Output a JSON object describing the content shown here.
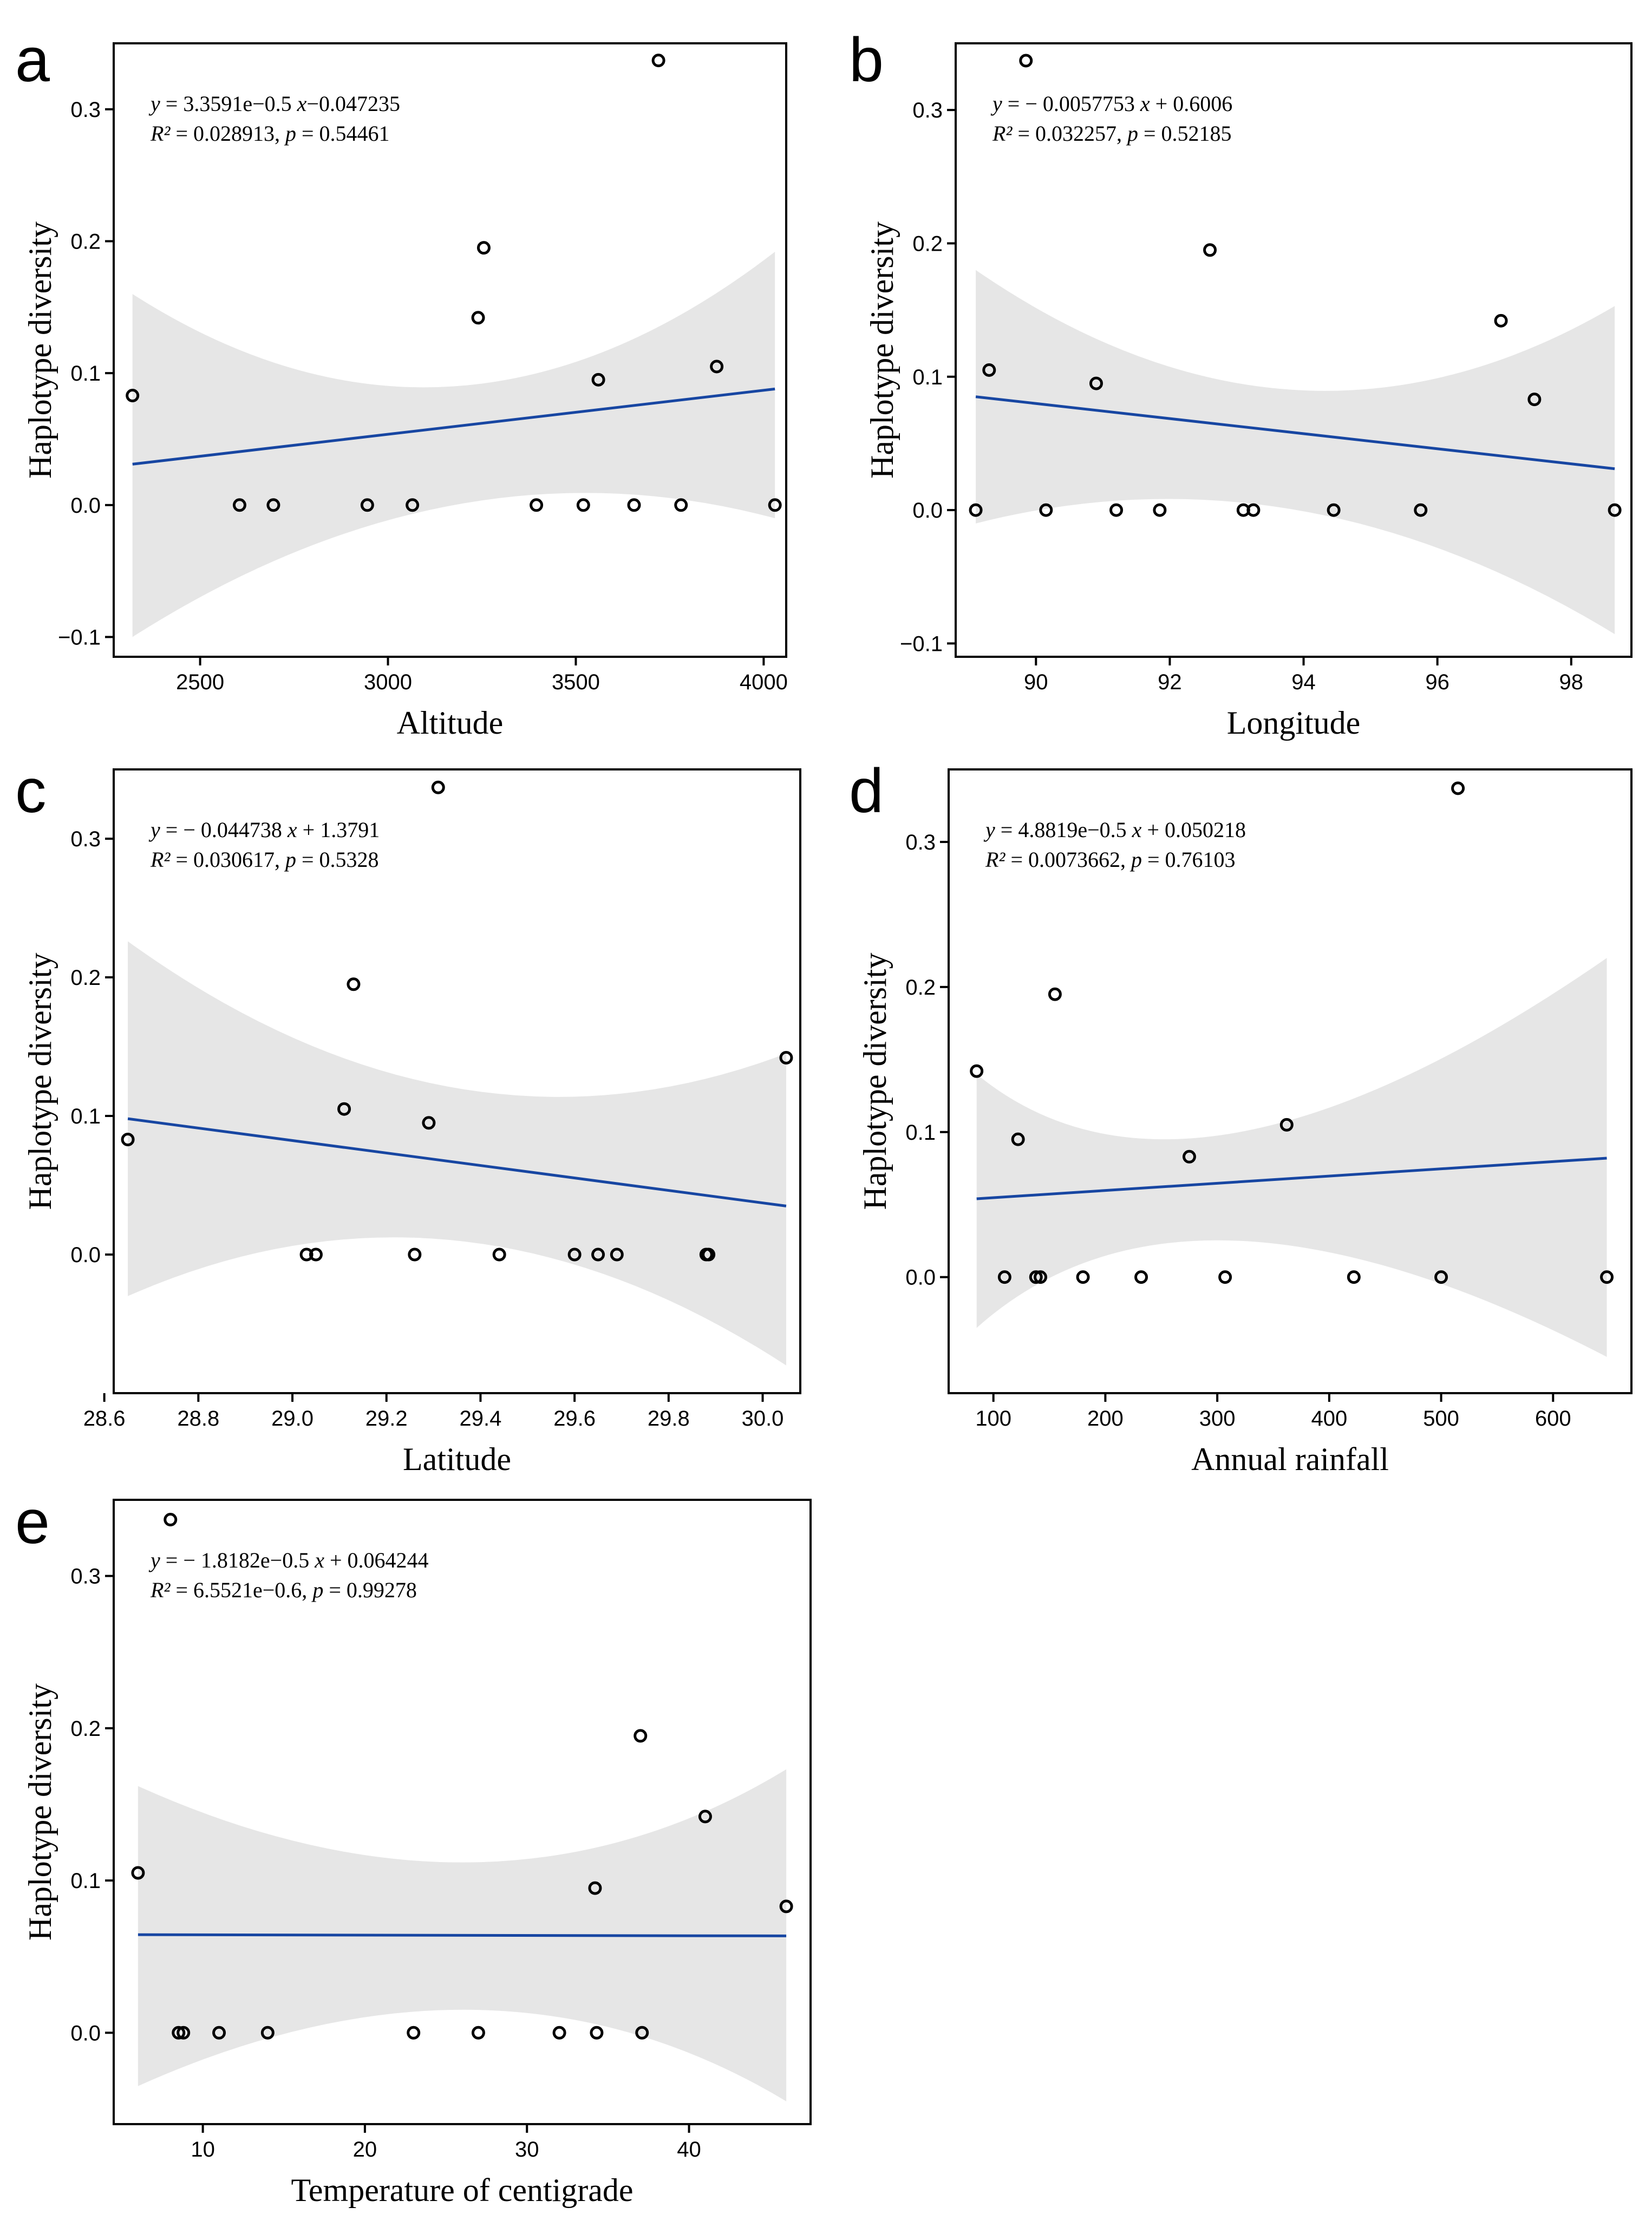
{
  "figure": {
    "ylabel": "Haplotype diversity",
    "colors": {
      "regression_line": "#1746a2",
      "confidence_band": "#e6e6e6",
      "points": "#000000",
      "axes": "#000000"
    }
  },
  "chart_data": [
    {
      "id": "a",
      "type": "scatter",
      "panel_label": "a",
      "title": "",
      "xlabel": "Altitude",
      "ylabel": "Haplotype diversity",
      "xlim": [
        2270,
        4060
      ],
      "ylim": [
        -0.115,
        0.35
      ],
      "xticks": [
        2500,
        3000,
        3500,
        4000
      ],
      "xtick_labels": [
        "2500",
        "3000",
        "3500",
        "4000"
      ],
      "yticks": [
        -0.1,
        0.0,
        0.1,
        0.2,
        0.3
      ],
      "ytick_labels": [
        "−0.1",
        "0.0",
        "0.1",
        "0.2",
        "0.3"
      ],
      "equation": {
        "line1": {
          "lhs": "y",
          "rhs": " = 3.3591e−0.5 ",
          "var": "x",
          "tail": "−0.047235"
        },
        "line2": {
          "r2": "R²",
          "r2_val": " = 0.028913, ",
          "p": "p",
          "p_val": " = 0.54461"
        }
      },
      "x": [
        2320,
        2605,
        2695,
        2945,
        3065,
        3240,
        3255,
        3395,
        3520,
        3560,
        3655,
        3720,
        3780,
        3875,
        4030
      ],
      "y": [
        0.083,
        0.0,
        0.0,
        0.0,
        0.0,
        0.142,
        0.195,
        0.0,
        0.0,
        0.095,
        0.0,
        0.337,
        0.0,
        0.105,
        0.0
      ],
      "fit": {
        "x": [
          2320,
          4030
        ],
        "y": [
          0.031,
          0.088
        ]
      },
      "band": {
        "x": [
          2320,
          3175,
          4030
        ],
        "upper": [
          0.16,
          0.09,
          0.192
        ],
        "lower": [
          -0.1,
          0.0,
          -0.01
        ]
      }
    },
    {
      "id": "b",
      "type": "scatter",
      "panel_label": "b",
      "title": "",
      "xlabel": "Longitude",
      "ylabel": "Haplotype diversity",
      "xlim": [
        88.8,
        98.9
      ],
      "ylim": [
        -0.11,
        0.35
      ],
      "xticks": [
        90,
        92,
        94,
        96,
        98
      ],
      "xtick_labels": [
        "90",
        "92",
        "94",
        "96",
        "98"
      ],
      "yticks": [
        -0.1,
        0.0,
        0.1,
        0.2,
        0.3
      ],
      "ytick_labels": [
        "−0.1",
        "0.0",
        "0.1",
        "0.2",
        "0.3"
      ],
      "equation": {
        "line1": {
          "lhs": "y",
          "rhs": " = − 0.0057753 ",
          "var": "x",
          "tail": " + 0.6006"
        },
        "line2": {
          "r2": "R²",
          "r2_val": " = 0.032257, ",
          "p": "p",
          "p_val": " = 0.52185"
        }
      },
      "x": [
        89.1,
        89.3,
        89.85,
        90.15,
        90.9,
        91.2,
        91.85,
        92.6,
        93.1,
        93.25,
        94.45,
        95.75,
        96.95,
        97.45,
        98.65
      ],
      "y": [
        0.0,
        0.105,
        0.337,
        0.0,
        0.095,
        0.0,
        0.0,
        0.195,
        0.0,
        0.0,
        0.0,
        0.0,
        0.142,
        0.083,
        0.0
      ],
      "fit": {
        "x": [
          89.1,
          98.65
        ],
        "y": [
          0.085,
          0.031
        ]
      },
      "band": {
        "x": [
          89.1,
          93.9,
          98.65
        ],
        "upper": [
          0.18,
          0.09,
          0.153
        ],
        "lower": [
          -0.01,
          0.0,
          -0.093
        ]
      }
    },
    {
      "id": "c",
      "type": "scatter",
      "panel_label": "c",
      "title": "",
      "xlabel": "Latitude",
      "ylabel": "Haplotype diversity",
      "xlim": [
        28.62,
        30.08
      ],
      "ylim": [
        -0.1,
        0.35
      ],
      "xticks": [
        28.6,
        28.8,
        29.0,
        29.2,
        29.4,
        29.6,
        29.8,
        30.0
      ],
      "xtick_labels": [
        "28.6",
        "28.8",
        "29.0",
        "29.2",
        "29.4",
        "29.6",
        "29.8",
        "30.0"
      ],
      "yticks": [
        0.0,
        0.1,
        0.2,
        0.3
      ],
      "ytick_labels": [
        "0.0",
        "0.1",
        "0.2",
        "0.3"
      ],
      "equation": {
        "line1": {
          "lhs": "y",
          "rhs": " = − 0.044738 ",
          "var": "x",
          "tail": " + 1.3791"
        },
        "line2": {
          "r2": "R²",
          "r2_val": " =  0.030617, ",
          "p": "p",
          "p_val": " = 0.5328"
        }
      },
      "x": [
        28.65,
        29.03,
        29.05,
        29.11,
        29.13,
        29.26,
        29.29,
        29.31,
        29.44,
        29.6,
        29.65,
        29.69,
        29.88,
        29.885,
        30.05
      ],
      "y": [
        0.083,
        0.0,
        0.0,
        0.105,
        0.195,
        0.0,
        0.095,
        0.337,
        0.0,
        0.0,
        0.0,
        0.0,
        0.0,
        0.0,
        0.142
      ],
      "fit": {
        "x": [
          28.65,
          30.05
        ],
        "y": [
          0.098,
          0.035
        ]
      },
      "band": {
        "x": [
          28.65,
          29.35,
          30.05
        ],
        "upper": [
          0.226,
          0.12,
          0.145
        ],
        "lower": [
          -0.03,
          0.01,
          -0.08
        ]
      }
    },
    {
      "id": "d",
      "type": "scatter",
      "panel_label": "d",
      "title": "",
      "xlabel": "Annual rainfall",
      "ylabel": "Haplotype diversity",
      "xlim": [
        60,
        670
      ],
      "ylim": [
        -0.08,
        0.35
      ],
      "xticks": [
        100,
        200,
        300,
        400,
        500,
        600
      ],
      "xtick_labels": [
        "100",
        "200",
        "300",
        "400",
        "500",
        "600"
      ],
      "yticks": [
        0.0,
        0.1,
        0.2,
        0.3
      ],
      "ytick_labels": [
        "0.0",
        "0.1",
        "0.2",
        "0.3"
      ],
      "equation": {
        "line1": {
          "lhs": "y",
          "rhs": " = 4.8819e−0.5 ",
          "var": "x",
          "tail": " + 0.050218"
        },
        "line2": {
          "r2": "R²",
          "r2_val": " = 0.0073662, ",
          "p": "p",
          "p_val": " = 0.76103"
        }
      },
      "x": [
        85,
        110,
        122,
        138,
        142,
        155,
        180,
        232,
        275,
        307,
        362,
        422,
        500,
        515,
        648
      ],
      "y": [
        0.142,
        0.0,
        0.095,
        0.0,
        0.0,
        0.195,
        0.0,
        0.0,
        0.083,
        0.0,
        0.105,
        0.0,
        0.0,
        0.337,
        0.0
      ],
      "fit": {
        "x": [
          85,
          648
        ],
        "y": [
          0.054,
          0.082
        ]
      },
      "band": {
        "x": [
          85,
          320,
          648
        ],
        "upper": [
          0.14,
          0.1,
          0.22
        ],
        "lower": [
          -0.035,
          0.025,
          -0.055
        ]
      }
    },
    {
      "id": "e",
      "type": "scatter",
      "panel_label": "e",
      "title": "",
      "xlabel": "Temperature of centigrade",
      "ylabel": "Haplotype diversity",
      "xlim": [
        4.5,
        47.5
      ],
      "ylim": [
        -0.06,
        0.35
      ],
      "xticks": [
        10,
        20,
        30,
        40
      ],
      "xtick_labels": [
        "10",
        "20",
        "30",
        "40"
      ],
      "yticks": [
        0.0,
        0.1,
        0.2,
        0.3
      ],
      "ytick_labels": [
        "0.0",
        "0.1",
        "0.2",
        "0.3"
      ],
      "equation": {
        "line1": {
          "lhs": "y",
          "rhs": " = − 1.8182e−0.5 ",
          "var": "x",
          "tail": " + 0.064244"
        },
        "line2": {
          "r2": "R²",
          "r2_val": " =  6.5521e−0.6, ",
          "p": "p",
          "p_val": " = 0.99278"
        }
      },
      "x": [
        6,
        8,
        8.5,
        8.8,
        11,
        14,
        23,
        27,
        32,
        34.2,
        34.3,
        37,
        37.1,
        41,
        46
      ],
      "y": [
        0.105,
        0.337,
        0.0,
        0.0,
        0.0,
        0.0,
        0.0,
        0.0,
        0.0,
        0.095,
        0.0,
        0.195,
        0.0,
        0.142,
        0.083
      ],
      "fit": {
        "x": [
          6,
          46
        ],
        "y": [
          0.0644,
          0.0636
        ]
      },
      "band": {
        "x": [
          6,
          27,
          46
        ],
        "upper": [
          0.162,
          0.112,
          0.173
        ],
        "lower": [
          -0.035,
          0.015,
          -0.045
        ]
      }
    }
  ]
}
